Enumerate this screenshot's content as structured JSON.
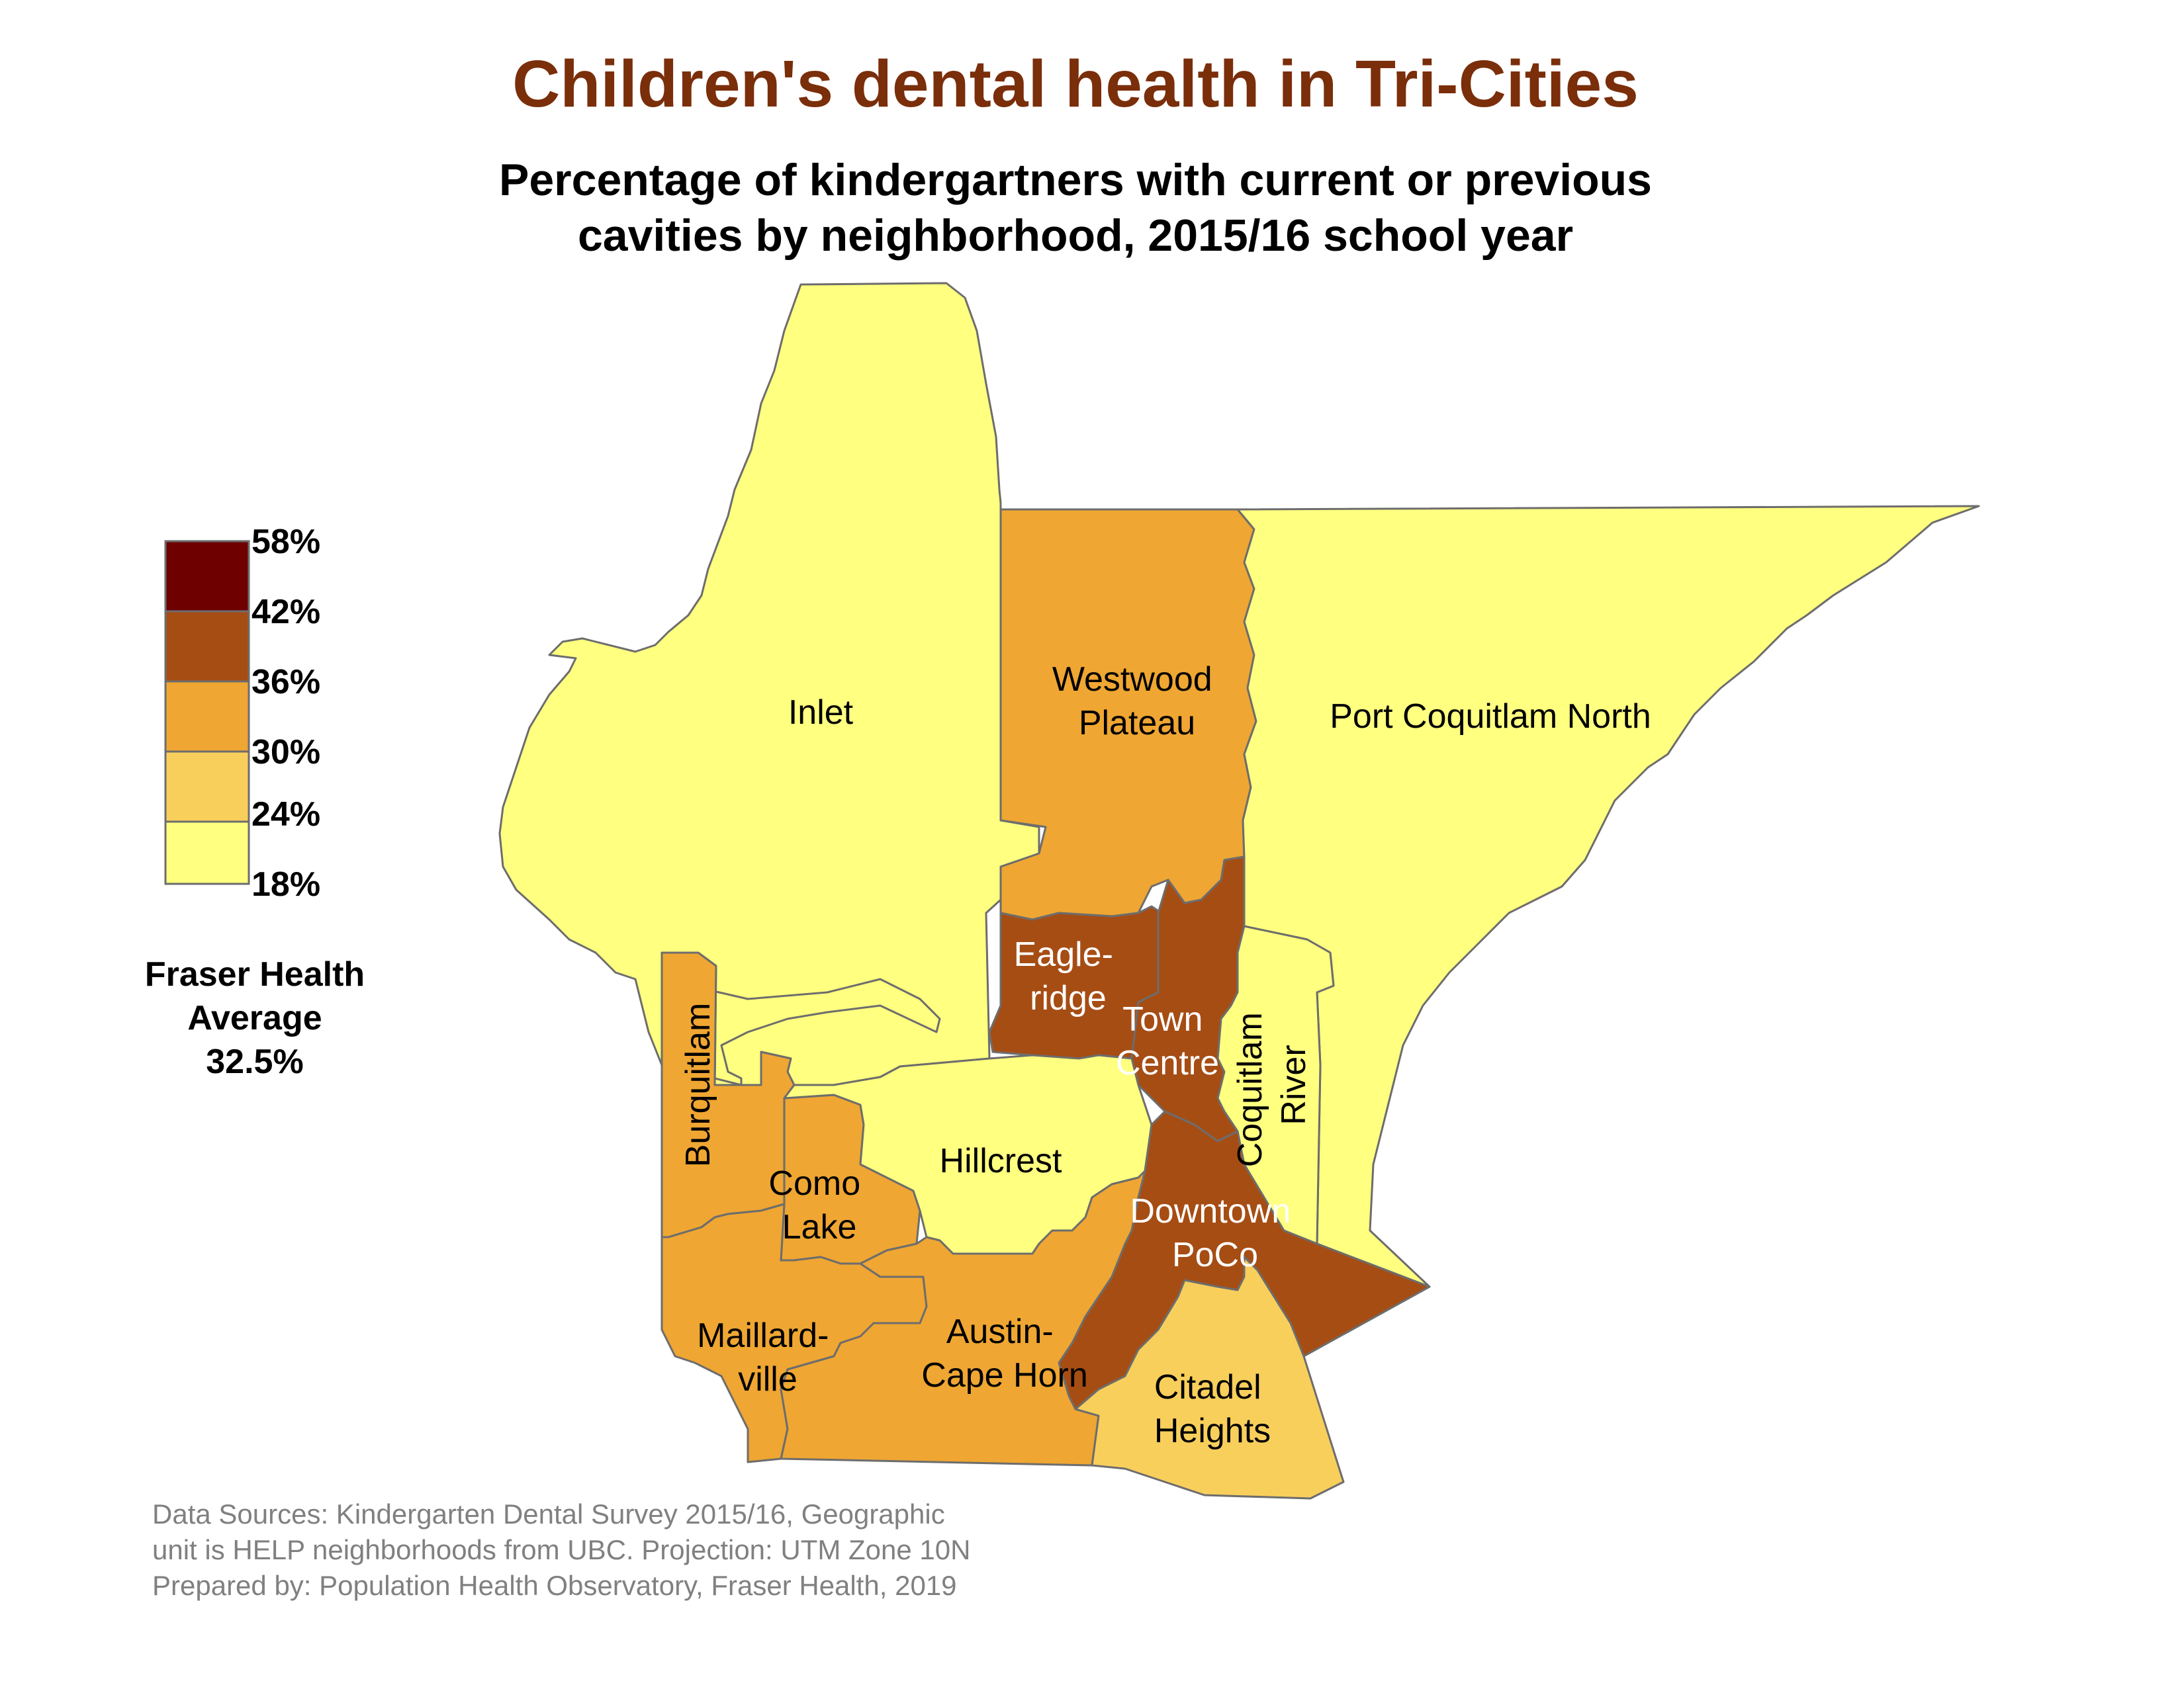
{
  "title": "Children's dental health in Tri-Cities",
  "subtitle_lines": [
    "Percentage of kindergartners with current or previous",
    "cavities by neighborhood, 2015/16 school year"
  ],
  "legend": {
    "breaks": [
      "58%",
      "42%",
      "36%",
      "30%",
      "24%",
      "18%"
    ],
    "classes": [
      {
        "range": "42%–58%",
        "color": "#6e0000"
      },
      {
        "range": "36%–42%",
        "color": "#a64d14"
      },
      {
        "range": "30%–36%",
        "color": "#efa632"
      },
      {
        "range": "24%–30%",
        "color": "#f9cf5c"
      },
      {
        "range": "18%–24%",
        "color": "#ffff80"
      }
    ]
  },
  "average": {
    "lines": [
      "Fraser Health",
      "Average",
      "32.5%"
    ]
  },
  "neighborhoods": [
    {
      "id": "inlet",
      "lines": [
        "Inlet"
      ],
      "class": "18%–24%",
      "color": "#ffff80"
    },
    {
      "id": "westwood-plateau",
      "lines": [
        "Westwood",
        "Plateau"
      ],
      "class": "30%–36%",
      "color": "#efa632"
    },
    {
      "id": "port-coquitlam-north",
      "lines": [
        "Port Coquitlam North"
      ],
      "class": "18%–24%",
      "color": "#ffff80"
    },
    {
      "id": "eagle-ridge",
      "lines": [
        "Eagle-",
        "ridge"
      ],
      "class": "36%–42%",
      "color": "#a64d14"
    },
    {
      "id": "town-centre",
      "lines": [
        "Town",
        "Centre"
      ],
      "class": "36%–42%",
      "color": "#a64d14"
    },
    {
      "id": "coquitlam-river",
      "lines": [
        "Coquitlam",
        "River"
      ],
      "class": "18%–24%",
      "color": "#ffff80"
    },
    {
      "id": "burquitlam",
      "lines": [
        "Burquitlam"
      ],
      "class": "30%–36%",
      "color": "#efa632"
    },
    {
      "id": "como-lake",
      "lines": [
        "Como",
        "Lake"
      ],
      "class": "30%–36%",
      "color": "#efa632"
    },
    {
      "id": "hillcrest",
      "lines": [
        "Hillcrest"
      ],
      "class": "18%–24%",
      "color": "#ffff80"
    },
    {
      "id": "downtown-poco",
      "lines": [
        "Downtown",
        "PoCo"
      ],
      "class": "36%–42%",
      "color": "#a64d14"
    },
    {
      "id": "maillardville",
      "lines": [
        "Maillard-",
        "ville"
      ],
      "class": "30%–36%",
      "color": "#efa632"
    },
    {
      "id": "austin-cape-horn",
      "lines": [
        "Austin-",
        "Cape Horn"
      ],
      "class": "30%–36%",
      "color": "#efa632"
    },
    {
      "id": "citadel-heights",
      "lines": [
        "Citadel",
        "Heights"
      ],
      "class": "24%–30%",
      "color": "#f9cf5c"
    }
  ],
  "source": {
    "lines": [
      "Data Sources: Kindergarten Dental Survey 2015/16, Geographic",
      "unit is HELP neighborhoods from UBC. Projection: UTM Zone 10N",
      "Prepared by: Population Health Observatory, Fraser Health, 2019"
    ]
  }
}
